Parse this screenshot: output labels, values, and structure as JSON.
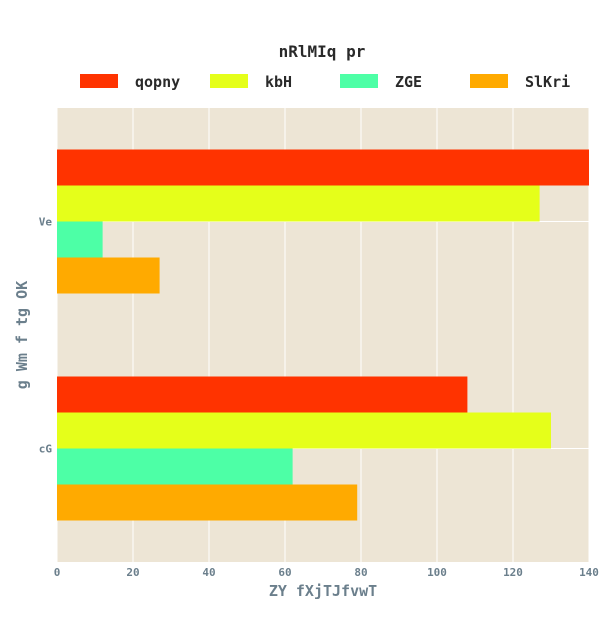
{
  "chart_data": {
    "type": "bar",
    "orientation": "horizontal",
    "legend_title": "nRlMIq pr",
    "legend_placement": "top",
    "categories": [
      "Ve",
      "cG"
    ],
    "series": [
      {
        "name": "qopny",
        "color": "#ff3300",
        "values": [
          140,
          108
        ]
      },
      {
        "name": "kbH",
        "color": "#e5ff1a",
        "values": [
          127,
          130
        ]
      },
      {
        "name": "ZGE",
        "color": "#4dffa6",
        "values": [
          12,
          62
        ]
      },
      {
        "name": "SlKri",
        "color": "#ffaa00",
        "values": [
          27,
          79
        ]
      }
    ],
    "xlabel": "ZY fXjTJfvwT",
    "ylabel": "g Wm f tg OK",
    "xlim": [
      0,
      140
    ],
    "xticks": [
      0,
      20,
      40,
      60,
      80,
      100,
      120,
      140
    ],
    "grid": true,
    "plot_background": "#ede5d5"
  }
}
